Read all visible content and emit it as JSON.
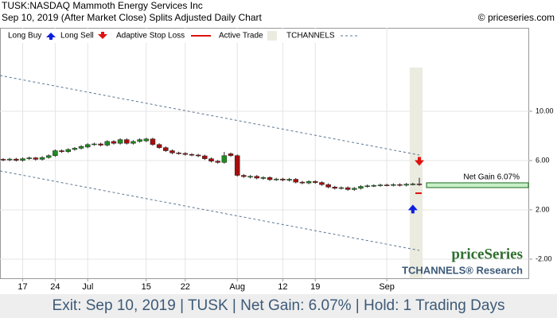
{
  "chart_data": {
    "type": "candlestick",
    "title": "TUSK:NASDAQ Mammoth Energy Services Inc",
    "subtitle": "Sep 10, 2019 (After Market Close)  Splits Adjusted Daily Chart",
    "credit": "© priceseries.com",
    "footer": "Exit: Sep 10, 2019 | TUSK | Net Gain: 6.07% | Hold: 1 Trading Days",
    "watermark": "priceSeries",
    "watermark_sub": "TCHANNELS® Research",
    "legend": [
      "Long Buy",
      "Long Sell",
      "Adaptive Stop Loss",
      "Active Trade",
      "TCHANNELS"
    ],
    "up_color": "#1e8c1e",
    "down_color": "#a80d0d",
    "grid": true,
    "ylim": [
      -3.55,
      16.77
    ],
    "yticks": [
      {
        "value": 10,
        "label": "10.00"
      },
      {
        "value": 6,
        "label": "6.00"
      },
      {
        "value": 2,
        "label": "2.00"
      },
      {
        "value": -2,
        "label": "-2.00"
      }
    ],
    "categories": [
      null,
      null,
      null,
      "17",
      null,
      null,
      null,
      null,
      "24",
      null,
      null,
      null,
      null,
      "Jul",
      null,
      null,
      null,
      null,
      null,
      null,
      null,
      null,
      "15",
      null,
      null,
      null,
      null,
      null,
      "22",
      null,
      null,
      null,
      null,
      null,
      null,
      null,
      "Aug",
      null,
      null,
      null,
      null,
      null,
      null,
      "12",
      null,
      null,
      null,
      null,
      "19",
      null,
      null,
      null,
      null,
      null,
      null,
      null,
      null,
      null,
      null,
      "Sep",
      null,
      null,
      null,
      null,
      null
    ],
    "open": [
      6.1,
      6.05,
      6.12,
      6.02,
      6.15,
      6.22,
      6.1,
      6.25,
      6.4,
      6.8,
      6.72,
      6.9,
      7.0,
      7.1,
      7.3,
      7.35,
      7.25,
      7.55,
      7.4,
      7.7,
      7.4,
      7.55,
      7.6,
      7.75,
      7.3,
      7.05,
      6.8,
      6.62,
      6.58,
      6.5,
      6.45,
      6.38,
      6.15,
      5.95,
      5.85,
      6.55,
      6.4,
      4.8,
      4.65,
      4.72,
      4.55,
      4.62,
      4.45,
      4.5,
      4.4,
      4.48,
      4.25,
      4.18,
      4.3,
      4.22,
      4.05,
      3.85,
      3.75,
      3.8,
      3.65,
      3.75,
      3.9,
      3.95,
      3.98,
      4.02,
      4.0,
      4.05,
      4.0,
      4.08,
      4.1
    ],
    "close": [
      6.05,
      6.12,
      6.02,
      6.15,
      6.22,
      6.1,
      6.25,
      6.4,
      6.8,
      6.72,
      6.9,
      7.0,
      7.15,
      7.3,
      7.35,
      7.25,
      7.55,
      7.4,
      7.7,
      7.4,
      7.55,
      7.7,
      7.75,
      7.3,
      7.05,
      6.8,
      6.62,
      6.58,
      6.5,
      6.45,
      6.38,
      6.15,
      5.95,
      5.85,
      6.4,
      6.4,
      4.8,
      4.7,
      4.72,
      4.58,
      4.62,
      4.45,
      4.5,
      4.42,
      4.48,
      4.25,
      4.18,
      4.3,
      4.22,
      4.05,
      3.85,
      3.75,
      3.8,
      3.65,
      3.75,
      3.9,
      3.95,
      3.98,
      4.02,
      4.0,
      4.05,
      4.0,
      4.08,
      4.1,
      4.05
    ],
    "high": [
      6.2,
      6.22,
      6.22,
      6.25,
      6.32,
      6.3,
      6.35,
      6.5,
      6.9,
      6.9,
      7.0,
      7.1,
      7.25,
      7.4,
      7.45,
      7.45,
      7.65,
      7.65,
      7.8,
      7.8,
      7.65,
      7.8,
      7.85,
      7.85,
      7.4,
      7.15,
      6.9,
      6.72,
      6.68,
      6.6,
      6.55,
      6.48,
      6.25,
      6.05,
      6.7,
      6.65,
      6.5,
      4.9,
      4.82,
      4.82,
      4.72,
      4.72,
      4.6,
      4.6,
      4.58,
      4.58,
      4.35,
      4.4,
      4.4,
      4.32,
      4.15,
      3.95,
      3.9,
      3.9,
      3.85,
      4.0,
      4.05,
      4.08,
      4.12,
      4.12,
      4.15,
      4.15,
      4.18,
      4.2,
      4.6
    ],
    "low": [
      5.95,
      5.95,
      5.92,
      5.92,
      6.05,
      6.0,
      6.0,
      6.15,
      6.3,
      6.62,
      6.62,
      6.8,
      6.9,
      7.0,
      7.2,
      7.15,
      7.15,
      7.3,
      7.3,
      7.3,
      7.3,
      7.45,
      7.5,
      7.2,
      6.95,
      6.7,
      6.52,
      6.48,
      6.4,
      6.35,
      6.28,
      6.05,
      5.85,
      5.75,
      5.75,
      6.3,
      4.7,
      4.6,
      4.55,
      4.48,
      4.45,
      4.35,
      4.35,
      4.32,
      4.3,
      4.15,
      4.08,
      4.08,
      4.12,
      3.95,
      3.75,
      3.65,
      3.65,
      3.55,
      3.55,
      3.65,
      3.8,
      3.85,
      3.88,
      3.92,
      3.9,
      3.9,
      3.9,
      3.98,
      3.95
    ],
    "channel_upper": [
      12.9,
      6.45
    ],
    "channel_lower": [
      5.16,
      -1.29
    ],
    "buy_arrow": 2.1,
    "sell_arrow": 5.9,
    "stop_loss": 3.35,
    "net_gain_level": 4.0,
    "net_gain_label": "Net Gain 6.07%"
  }
}
